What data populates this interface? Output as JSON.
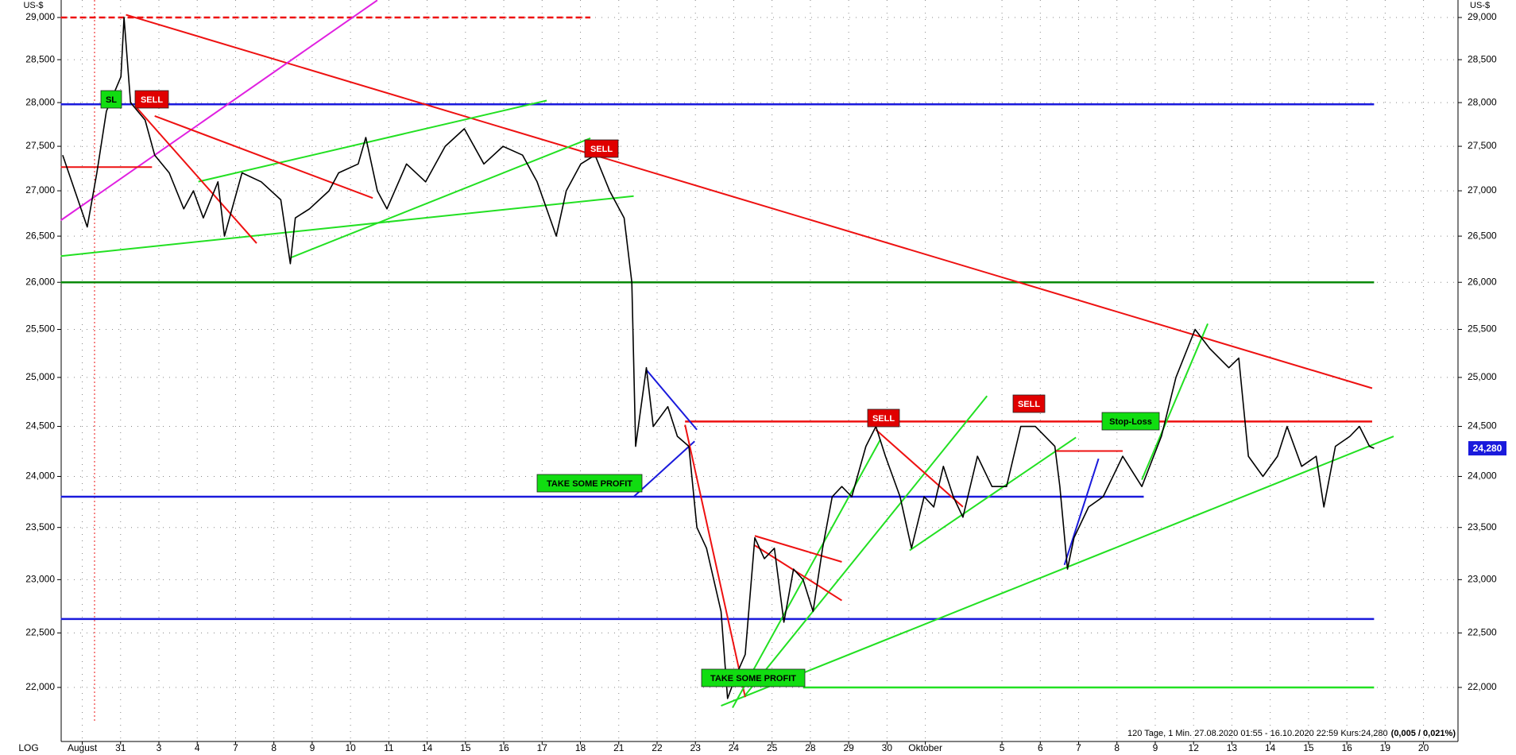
{
  "chart_data": {
    "type": "line",
    "log_scale": true,
    "grid": true,
    "y_unit_label": "US-$",
    "scale_label": "LOG",
    "info": "120 Tage, 1 Min. 27.08.2020 01:55 - 16.10.2020 22:59  Kurs:24,280",
    "info_change": "(0,005 / 0,021%)",
    "last_price": {
      "value": 24280,
      "label": "24,280"
    },
    "color": "#000000",
    "xlim": [
      -0.55,
      35.9
    ],
    "ylim": [
      21515,
      29210
    ],
    "xticks": [
      {
        "value": 0,
        "label": "August"
      },
      {
        "value": 1,
        "label": "31"
      },
      {
        "value": 2,
        "label": "3"
      },
      {
        "value": 3,
        "label": "4"
      },
      {
        "value": 4,
        "label": "7"
      },
      {
        "value": 5,
        "label": "8"
      },
      {
        "value": 6,
        "label": "9"
      },
      {
        "value": 7,
        "label": "10"
      },
      {
        "value": 8,
        "label": "11"
      },
      {
        "value": 9,
        "label": "14"
      },
      {
        "value": 10,
        "label": "15"
      },
      {
        "value": 11,
        "label": "16"
      },
      {
        "value": 12,
        "label": "17"
      },
      {
        "value": 13,
        "label": "18"
      },
      {
        "value": 14,
        "label": "21"
      },
      {
        "value": 15,
        "label": "22"
      },
      {
        "value": 16,
        "label": "23"
      },
      {
        "value": 17,
        "label": "24"
      },
      {
        "value": 18,
        "label": "25"
      },
      {
        "value": 19,
        "label": "28"
      },
      {
        "value": 20,
        "label": "29"
      },
      {
        "value": 21,
        "label": "30"
      },
      {
        "value": 22,
        "label": "Oktober"
      },
      {
        "value": 24,
        "label": "5"
      },
      {
        "value": 25,
        "label": "6"
      },
      {
        "value": 26,
        "label": "7"
      },
      {
        "value": 27,
        "label": "8"
      },
      {
        "value": 28,
        "label": "9"
      },
      {
        "value": 29,
        "label": "12"
      },
      {
        "value": 30,
        "label": "13"
      },
      {
        "value": 31,
        "label": "14"
      },
      {
        "value": 32,
        "label": "15"
      },
      {
        "value": 33,
        "label": "16"
      },
      {
        "value": 34,
        "label": "19"
      },
      {
        "value": 35,
        "label": "20"
      }
    ],
    "yticks": [
      {
        "value": 22000,
        "label": "22,000"
      },
      {
        "value": 22500,
        "label": "22,500"
      },
      {
        "value": 23000,
        "label": "23,000"
      },
      {
        "value": 23500,
        "label": "23,500"
      },
      {
        "value": 24000,
        "label": "24,000"
      },
      {
        "value": 24500,
        "label": "24,500"
      },
      {
        "value": 25000,
        "label": "25,000"
      },
      {
        "value": 25500,
        "label": "25,500"
      },
      {
        "value": 26000,
        "label": "26,000"
      },
      {
        "value": 26500,
        "label": "26,500"
      },
      {
        "value": 27000,
        "label": "27,000"
      },
      {
        "value": 27500,
        "label": "27,500"
      },
      {
        "value": 28000,
        "label": "28,000"
      },
      {
        "value": 28500,
        "label": "28,500"
      },
      {
        "value": 29000,
        "label": "29,000"
      }
    ],
    "x": [
      -0.51,
      0.13,
      0.38,
      0.63,
      1.01,
      1.09,
      1.26,
      1.64,
      1.89,
      2.27,
      2.65,
      2.9,
      3.16,
      3.54,
      3.71,
      4.17,
      4.67,
      5.18,
      5.43,
      5.56,
      5.93,
      6.44,
      6.69,
      7.2,
      7.4,
      7.7,
      7.95,
      8.46,
      8.96,
      9.47,
      9.97,
      10.48,
      10.98,
      11.49,
      11.87,
      12.37,
      12.63,
      13.01,
      13.38,
      13.76,
      14.14,
      14.34,
      14.44,
      14.72,
      14.9,
      15.28,
      15.53,
      15.83,
      16.04,
      16.29,
      16.67,
      16.84,
      17.05,
      17.3,
      17.55,
      17.8,
      18.06,
      18.31,
      18.56,
      18.81,
      19.07,
      19.32,
      19.57,
      19.82,
      20.08,
      20.45,
      20.71,
      20.96,
      21.34,
      21.64,
      21.97,
      22.22,
      22.47,
      22.73,
      22.98,
      23.36,
      23.74,
      24.12,
      24.49,
      24.87,
      25.38,
      25.51,
      25.71,
      25.88,
      26.26,
      26.64,
      27.15,
      27.65,
      28.16,
      28.54,
      29.04,
      29.42,
      29.92,
      30.18,
      30.43,
      30.81,
      31.19,
      31.44,
      31.82,
      32.2,
      32.4,
      32.7,
      33.08,
      33.33,
      33.59,
      33.71
    ],
    "values": [
      27400,
      26600,
      27200,
      27900,
      28300,
      29000,
      28000,
      27800,
      27400,
      27200,
      26800,
      27000,
      26700,
      27100,
      26500,
      27200,
      27100,
      26900,
      26200,
      26700,
      26800,
      27000,
      27200,
      27300,
      27600,
      27000,
      26800,
      27300,
      27100,
      27500,
      27700,
      27300,
      27500,
      27400,
      27100,
      26500,
      27000,
      27300,
      27400,
      27000,
      26700,
      26000,
      24300,
      25100,
      24500,
      24700,
      24400,
      24300,
      23500,
      23300,
      22700,
      21900,
      22100,
      22300,
      23400,
      23200,
      23300,
      22600,
      23100,
      23000,
      22700,
      23300,
      23800,
      23900,
      23800,
      24300,
      24500,
      24200,
      23800,
      23300,
      23800,
      23700,
      24100,
      23800,
      23600,
      24200,
      23900,
      23900,
      24500,
      24500,
      24300,
      23900,
      23100,
      23400,
      23700,
      23800,
      24200,
      23900,
      24400,
      25000,
      25500,
      25300,
      25100,
      25200,
      24200,
      24000,
      24200,
      24500,
      24100,
      24200,
      23700,
      24300,
      24400,
      24500,
      24300,
      24280
    ],
    "levels": [
      {
        "value": 29000,
        "x": [
          -0.56,
          13.26
        ],
        "color": "#ee1111",
        "style": "dashed"
      },
      {
        "value": 27980,
        "x": [
          -0.56,
          33.71
        ],
        "color": "#1a1adc",
        "style": "solid"
      },
      {
        "value": 26000,
        "x": [
          -0.56,
          33.71
        ],
        "color": "#0a8a0a",
        "style": "solid"
      },
      {
        "value": 24550,
        "x": [
          15.73,
          33.66
        ],
        "color": "#ee1111",
        "style": "solid"
      },
      {
        "value": 23800,
        "x": [
          -0.56,
          27.7
        ],
        "color": "#1a1adc",
        "style": "solid"
      },
      {
        "value": 22630,
        "x": [
          -0.56,
          33.71
        ],
        "color": "#1a1adc",
        "style": "solid"
      },
      {
        "value": 22000,
        "x": [
          18.81,
          33.71
        ],
        "color": "#22e022",
        "style": "solid"
      }
    ],
    "trendlines": [
      {
        "x": [
          1.14,
          33.66
        ],
        "y": [
          29033,
          24889
        ],
        "color": "#ee1111"
      },
      {
        "x": [
          16.67,
          34.22
        ],
        "y": [
          21834,
          24400
        ],
        "color": "#22e022"
      },
      {
        "x": [
          -0.56,
          7.7
        ],
        "y": [
          26673,
          29207
        ],
        "color": "#e020e0"
      },
      {
        "x": [
          -0.56,
          14.39
        ],
        "y": [
          26283,
          26941
        ],
        "color": "#22e022"
      },
      {
        "x": [
          5.43,
          13.26
        ],
        "y": [
          26264,
          27592
        ],
        "color": "#22e022"
      },
      {
        "x": [
          3.03,
          12.12
        ],
        "y": [
          27102,
          28024
        ],
        "color": "#22e022"
      },
      {
        "x": [
          1.89,
          7.58
        ],
        "y": [
          27846,
          26919
        ],
        "color": "#ee1111"
      },
      {
        "x": [
          1.39,
          4.55
        ],
        "y": [
          27956,
          26422
        ],
        "color": "#ee1111"
      },
      {
        "x": [
          -0.56,
          1.82
        ],
        "y": [
          27265,
          27265
        ],
        "color": "#ee1111"
      },
      {
        "x": [
          14.72,
          16.04
        ],
        "y": [
          25078,
          24466
        ],
        "color": "#1a1adc"
      },
      {
        "x": [
          14.39,
          15.98
        ],
        "y": [
          23800,
          24350
        ],
        "color": "#1a1adc"
      },
      {
        "x": [
          15.73,
          17.3
        ],
        "y": [
          24516,
          21912
        ],
        "color": "#ee1111"
      },
      {
        "x": [
          16.97,
          20.83
        ],
        "y": [
          21817,
          24369
        ],
        "color": "#22e022"
      },
      {
        "x": [
          17.3,
          23.61
        ],
        "y": [
          21930,
          24809
        ],
        "color": "#22e022"
      },
      {
        "x": [
          17.55,
          19.82
        ],
        "y": [
          23419,
          23169
        ],
        "color": "#ee1111"
      },
      {
        "x": [
          17.55,
          19.82
        ],
        "y": [
          23327,
          22803
        ],
        "color": "#ee1111"
      },
      {
        "x": [
          20.71,
          22.98
        ],
        "y": [
          24466,
          23701
        ],
        "color": "#ee1111"
      },
      {
        "x": [
          21.59,
          25.93
        ],
        "y": [
          23279,
          24389
        ],
        "color": "#22e022"
      },
      {
        "x": [
          27.65,
          29.37
        ],
        "y": [
          23967,
          25560
        ],
        "color": "#22e022"
      },
      {
        "x": [
          25.38,
          27.15
        ],
        "y": [
          24253,
          24253
        ],
        "color": "#ee1111"
      },
      {
        "x": [
          25.63,
          26.52
        ],
        "y": [
          23140,
          24176
        ],
        "color": "#1a1adc"
      }
    ],
    "annotations": [
      {
        "text": "SL",
        "color": "#11dd11"
      },
      {
        "text": "SELL",
        "color": "#e00000"
      },
      {
        "text": "SELL",
        "color": "#e00000"
      },
      {
        "text": "TAKE SOME PROFIT",
        "color": "#11dd11"
      },
      {
        "text": "TAKE SOME PROFIT",
        "color": "#11dd11"
      },
      {
        "text": "SELL",
        "color": "#e00000"
      },
      {
        "text": "SELL",
        "color": "#e00000"
      },
      {
        "text": "Stop-Loss",
        "color": "#11dd11"
      }
    ]
  }
}
